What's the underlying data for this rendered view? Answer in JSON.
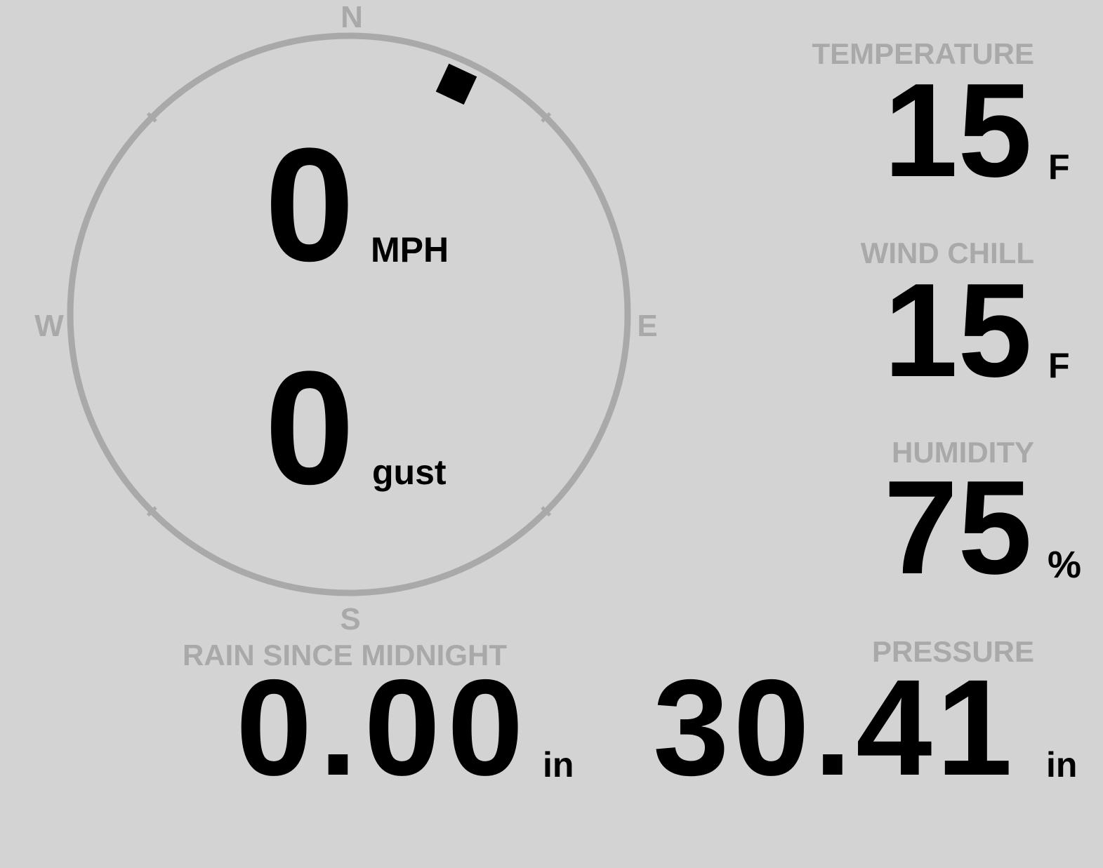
{
  "wind": {
    "speed": "0",
    "speed_unit": "MPH",
    "gust": "0",
    "gust_unit": "gust",
    "direction_degrees": 25,
    "compass": {
      "n": "N",
      "e": "E",
      "s": "S",
      "w": "W"
    }
  },
  "temperature": {
    "label": "TEMPERATURE",
    "value": "15",
    "unit": "F"
  },
  "wind_chill": {
    "label": "WIND CHILL",
    "value": "15",
    "unit": "F"
  },
  "humidity": {
    "label": "HUMIDITY",
    "value": "75",
    "unit": "%"
  },
  "rain": {
    "label": "RAIN SINCE MIDNIGHT",
    "value": "0.00",
    "unit": "in"
  },
  "pressure": {
    "label": "PRESSURE",
    "value": "30.41",
    "unit": "in"
  },
  "colors": {
    "background": "#d3d3d3",
    "label": "#a9a9a9",
    "value": "#000000",
    "ring": "#a9a9a9"
  }
}
